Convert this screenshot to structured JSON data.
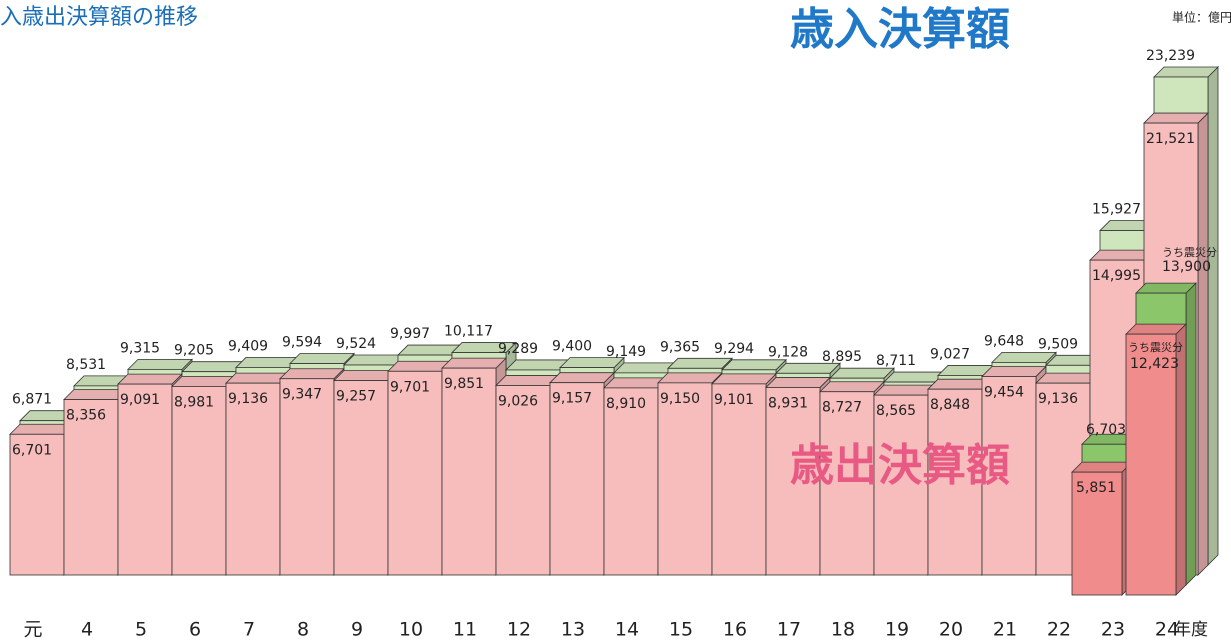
{
  "chart_data": {
    "type": "bar3d",
    "title": "歳入歳出決算額の推移",
    "unit": "単位：億円",
    "x_suffix": "年度",
    "categories": [
      "元",
      "4",
      "5",
      "6",
      "7",
      "8",
      "9",
      "10",
      "11",
      "12",
      "13",
      "14",
      "15",
      "16",
      "17",
      "18",
      "19",
      "20",
      "21",
      "22",
      "23",
      "24"
    ],
    "ylim": [
      0,
      25000
    ],
    "series": [
      {
        "name": "歳入決算額",
        "color": "#cfe6bd",
        "values": [
          6871,
          8531,
          9315,
          9205,
          9409,
          9594,
          9524,
          9997,
          10117,
          9289,
          9400,
          9149,
          9365,
          9294,
          9128,
          8895,
          8711,
          9027,
          9648,
          9509,
          15927,
          23239
        ],
        "value_labels": [
          "6,871",
          "8,531",
          "9,315",
          "9,205",
          "9,409",
          "9,594",
          "9,524",
          "9,997",
          "10,117",
          "9,289",
          "9,400",
          "9,149",
          "9,365",
          "9,294",
          "9,128",
          "8,895",
          "8,711",
          "9,027",
          "9,648",
          "9,509",
          "15,927",
          "23,239"
        ]
      },
      {
        "name": "歳出決算額",
        "color": "#f7bcbc",
        "values": [
          6701,
          8356,
          9091,
          8981,
          9136,
          9347,
          9257,
          9701,
          9851,
          9026,
          9157,
          8910,
          9150,
          9101,
          8931,
          8727,
          8565,
          8848,
          9454,
          9136,
          14995,
          21521
        ],
        "value_labels": [
          "6,701",
          "8,356",
          "9,091",
          "8,981",
          "9,136",
          "9,347",
          "9,257",
          "9,701",
          "9,851",
          "9,026",
          "9,157",
          "8,910",
          "9,150",
          "9,101",
          "8,931",
          "8,727",
          "8,565",
          "8,848",
          "9,454",
          "9,136",
          "14,995",
          "21,521"
        ]
      },
      {
        "name": "うち震災分",
        "color": "#8cc66a",
        "values": [
          null,
          null,
          null,
          null,
          null,
          null,
          null,
          null,
          null,
          null,
          null,
          null,
          null,
          null,
          null,
          null,
          null,
          null,
          null,
          null,
          6703,
          13900
        ],
        "value_labels": [
          null,
          null,
          null,
          null,
          null,
          null,
          null,
          null,
          null,
          null,
          null,
          null,
          null,
          null,
          null,
          null,
          null,
          null,
          null,
          null,
          "6,703",
          "13,900"
        ]
      },
      {
        "name": "うち震災分",
        "color": "#f08c8c",
        "values": [
          null,
          null,
          null,
          null,
          null,
          null,
          null,
          null,
          null,
          null,
          null,
          null,
          null,
          null,
          null,
          null,
          null,
          null,
          null,
          null,
          5851,
          12423
        ],
        "value_labels": [
          null,
          null,
          null,
          null,
          null,
          null,
          null,
          null,
          null,
          null,
          null,
          null,
          null,
          null,
          null,
          null,
          null,
          null,
          null,
          null,
          "5,851",
          "12,423"
        ]
      }
    ]
  }
}
